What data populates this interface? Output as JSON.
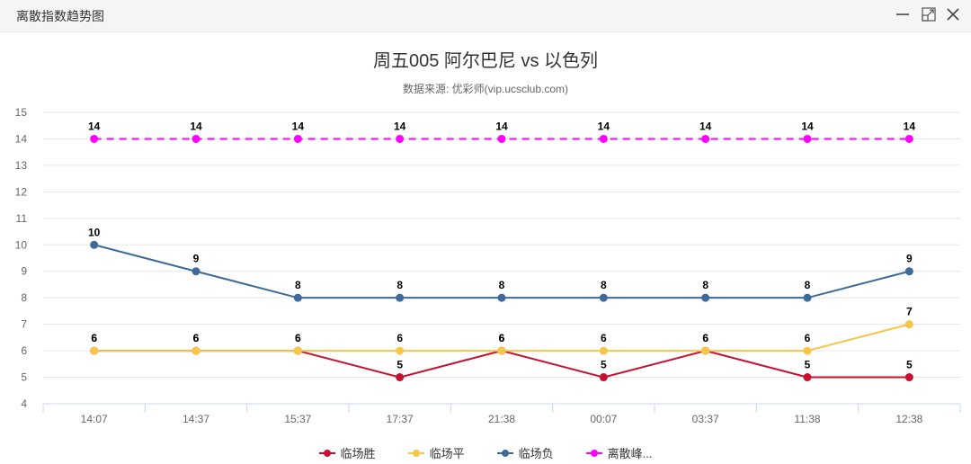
{
  "window": {
    "title": "离散指数趋势图",
    "controls": [
      "minimize-icon",
      "maximize-icon",
      "close-icon"
    ]
  },
  "chart": {
    "title": "周五005 阿尔巴尼 vs 以色列",
    "subtitle": "数据来源: 优彩师(vip.ucsclub.com)"
  },
  "chart_data": {
    "type": "line",
    "title": "周五005 阿尔巴尼 vs 以色列",
    "subtitle": "数据来源: 优彩师(vip.ucsclub.com)",
    "xlabel": "",
    "ylabel": "",
    "ylim": [
      4,
      15
    ],
    "yticks": [
      4,
      5,
      6,
      7,
      8,
      9,
      10,
      11,
      12,
      13,
      14,
      15
    ],
    "grid": true,
    "legend_position": "bottom",
    "categories": [
      "14:07",
      "14:37",
      "15:37",
      "17:37",
      "21:38",
      "00:07",
      "03:37",
      "11:38",
      "12:38"
    ],
    "series": [
      {
        "name": "临场胜",
        "color": "#c8102e",
        "dashed": false,
        "values": [
          6,
          6,
          6,
          5,
          6,
          5,
          6,
          5,
          5
        ]
      },
      {
        "name": "临场平",
        "color": "#f7c548",
        "dashed": false,
        "values": [
          6,
          6,
          6,
          6,
          6,
          6,
          6,
          6,
          7
        ]
      },
      {
        "name": "临场负",
        "color": "#3d6a99",
        "dashed": false,
        "values": [
          10,
          9,
          8,
          8,
          8,
          8,
          8,
          8,
          9
        ]
      },
      {
        "name": "离散峰...",
        "color": "#ff00ff",
        "dashed": true,
        "values": [
          14,
          14,
          14,
          14,
          14,
          14,
          14,
          14,
          14
        ]
      }
    ]
  },
  "legend": [
    {
      "label": "临场胜",
      "color": "#c8102e"
    },
    {
      "label": "临场平",
      "color": "#f7c548"
    },
    {
      "label": "临场负",
      "color": "#3d6a99"
    },
    {
      "label": "离散峰...",
      "color": "#ff00ff"
    }
  ]
}
